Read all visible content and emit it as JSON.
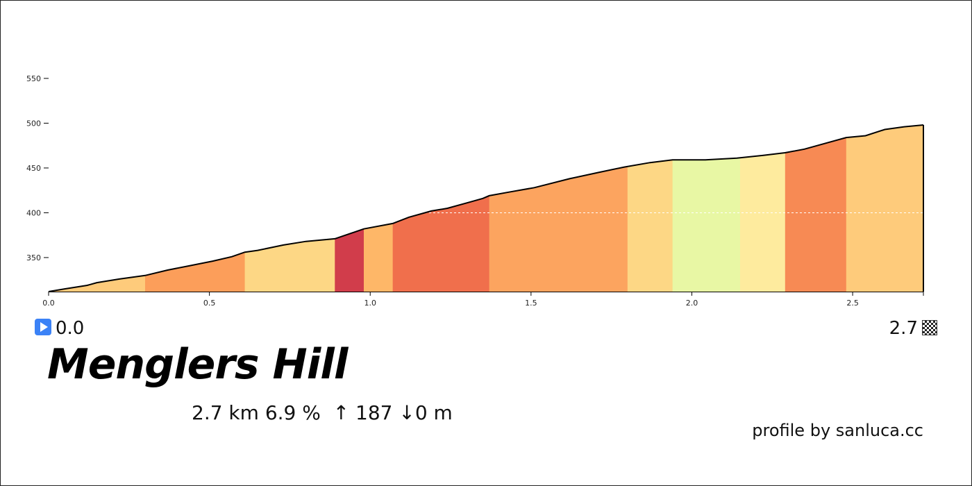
{
  "chart_data": {
    "type": "area",
    "title": "Menglers Hill",
    "xlabel": "",
    "ylabel": "",
    "xlim": [
      0,
      2.72
    ],
    "ylim": [
      312,
      560
    ],
    "x_ticks": [
      0.0,
      0.5,
      1.0,
      1.5,
      2.0,
      2.5
    ],
    "x_tick_labels": [
      "0.0",
      "0.5",
      "1.0",
      "1.5",
      "2.0",
      "2.5"
    ],
    "y_ticks": [
      350,
      400,
      450,
      500,
      550
    ],
    "y_tick_labels": [
      "350",
      "400",
      "450",
      "500",
      "550"
    ],
    "reference_line_y": 400,
    "profile": {
      "x": [
        0.0,
        0.05,
        0.12,
        0.15,
        0.22,
        0.3,
        0.37,
        0.44,
        0.51,
        0.57,
        0.61,
        0.65,
        0.73,
        0.8,
        0.89,
        0.98,
        1.07,
        1.12,
        1.19,
        1.24,
        1.3,
        1.35,
        1.37,
        1.43,
        1.51,
        1.62,
        1.71,
        1.79,
        1.87,
        1.94,
        2.04,
        2.14,
        2.22,
        2.29,
        2.35,
        2.42,
        2.48,
        2.54,
        2.6,
        2.66,
        2.72
      ],
      "y": [
        312,
        315,
        319,
        322,
        326,
        330,
        336,
        341,
        346,
        351,
        356,
        358,
        364,
        368,
        371,
        382,
        388,
        395,
        402,
        405,
        411,
        416,
        419,
        423,
        428,
        438,
        445,
        451,
        456,
        459,
        459,
        461,
        464,
        467,
        471,
        478,
        484,
        486,
        493,
        496,
        498
      ]
    },
    "segments": [
      {
        "from": 0.0,
        "to": 0.3,
        "color": "#fecb7b"
      },
      {
        "from": 0.3,
        "to": 0.61,
        "color": "#fc9e5a"
      },
      {
        "from": 0.61,
        "to": 0.89,
        "color": "#fdd785"
      },
      {
        "from": 0.89,
        "to": 0.98,
        "color": "#d13d4b"
      },
      {
        "from": 0.98,
        "to": 1.07,
        "color": "#feb768"
      },
      {
        "from": 1.07,
        "to": 1.37,
        "color": "#f06f4c"
      },
      {
        "from": 1.37,
        "to": 1.8,
        "color": "#fca45f"
      },
      {
        "from": 1.8,
        "to": 1.94,
        "color": "#fdd785"
      },
      {
        "from": 1.94,
        "to": 2.15,
        "color": "#e8f7a4"
      },
      {
        "from": 2.15,
        "to": 2.29,
        "color": "#feeb9e"
      },
      {
        "from": 2.29,
        "to": 2.48,
        "color": "#f78a54"
      },
      {
        "from": 2.48,
        "to": 2.72,
        "color": "#fecb7b"
      }
    ]
  },
  "start": {
    "value": "0.0",
    "icon": "play-icon"
  },
  "end": {
    "value": "2.7",
    "icon": "checkered-flag-icon"
  },
  "title": "Menglers Hill",
  "stats": "2.7 km 6.9 %  ↑ 187 ↓0 m",
  "credit": "profile by sanluca.cc"
}
